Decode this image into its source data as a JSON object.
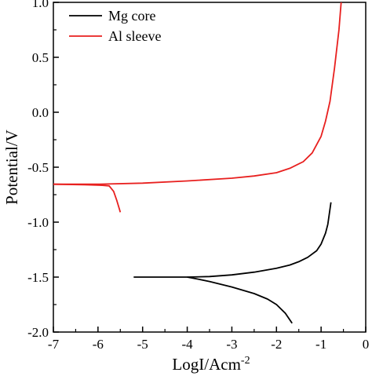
{
  "chart_data": {
    "type": "line",
    "xlabel": "LogI/Acm",
    "xlabel_superscript": "-2",
    "ylabel": "Potential/V",
    "xlim": [
      -7,
      0
    ],
    "ylim": [
      -2.0,
      1.0
    ],
    "x_ticks": [
      -7,
      -6,
      -5,
      -4,
      -3,
      -2,
      -1,
      0
    ],
    "y_ticks": [
      1.0,
      0.5,
      0.0,
      -0.5,
      -1.0,
      -1.5,
      -2.0
    ],
    "x_tick_labels": [
      "-7",
      "-6",
      "-5",
      "-4",
      "-3",
      "-2",
      "-1",
      "0"
    ],
    "y_tick_labels": [
      "1.0",
      "0.5",
      "0.0",
      "-0.5",
      "-1.0",
      "-1.5",
      "-2.0"
    ],
    "grid": false,
    "legend_position": "top-left",
    "series": [
      {
        "name": "Mg core",
        "color": "#000000",
        "segments": [
          [
            [
              -5.2,
              -1.5
            ],
            [
              -4.5,
              -1.5
            ],
            [
              -4.0,
              -1.5
            ],
            [
              -3.5,
              -1.495
            ],
            [
              -3.0,
              -1.48
            ],
            [
              -2.5,
              -1.455
            ],
            [
              -2.0,
              -1.42
            ],
            [
              -1.7,
              -1.39
            ],
            [
              -1.5,
              -1.36
            ],
            [
              -1.3,
              -1.32
            ],
            [
              -1.1,
              -1.26
            ],
            [
              -1.0,
              -1.2
            ],
            [
              -0.9,
              -1.1
            ],
            [
              -0.85,
              -1.02
            ],
            [
              -0.78,
              -0.82
            ]
          ],
          [
            [
              -4.0,
              -1.5
            ],
            [
              -3.8,
              -1.515
            ],
            [
              -3.5,
              -1.54
            ],
            [
              -3.0,
              -1.59
            ],
            [
              -2.5,
              -1.65
            ],
            [
              -2.2,
              -1.7
            ],
            [
              -2.0,
              -1.75
            ],
            [
              -1.8,
              -1.83
            ],
            [
              -1.65,
              -1.92
            ]
          ]
        ]
      },
      {
        "name": "Al sleeve",
        "color": "#e8201f",
        "segments": [
          [
            [
              -7.0,
              -0.655
            ],
            [
              -6.0,
              -0.655
            ],
            [
              -5.0,
              -0.645
            ],
            [
              -4.0,
              -0.625
            ],
            [
              -3.0,
              -0.6
            ],
            [
              -2.5,
              -0.58
            ],
            [
              -2.0,
              -0.55
            ],
            [
              -1.7,
              -0.51
            ],
            [
              -1.4,
              -0.45
            ],
            [
              -1.2,
              -0.37
            ],
            [
              -1.0,
              -0.22
            ],
            [
              -0.9,
              -0.08
            ],
            [
              -0.8,
              0.1
            ],
            [
              -0.7,
              0.4
            ],
            [
              -0.6,
              0.75
            ],
            [
              -0.55,
              1.0
            ]
          ],
          [
            [
              -7.0,
              -0.655
            ],
            [
              -6.3,
              -0.66
            ],
            [
              -5.9,
              -0.665
            ],
            [
              -5.75,
              -0.67
            ],
            [
              -5.65,
              -0.72
            ],
            [
              -5.58,
              -0.8
            ],
            [
              -5.52,
              -0.88
            ],
            [
              -5.5,
              -0.91
            ]
          ]
        ]
      }
    ]
  }
}
